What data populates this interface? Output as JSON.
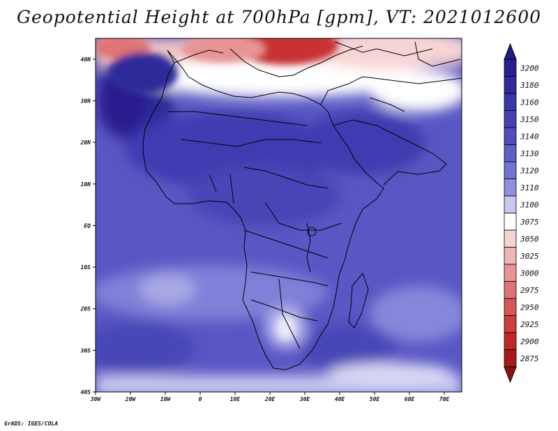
{
  "title": "Geopotential Height at 700hPa [gpm], VT: 2021012600",
  "footer": "GrADS: IGES/COLA",
  "map": {
    "lat_labels": [
      "40N",
      "30N",
      "20N",
      "10N",
      "EQ",
      "10S",
      "20S",
      "30S",
      "40S"
    ],
    "lon_labels": [
      "30W",
      "20W",
      "10W",
      "0",
      "10E",
      "20E",
      "30E",
      "40E",
      "50E",
      "60E",
      "70E"
    ],
    "lat_range": [
      -40,
      45
    ],
    "lon_range": [
      -30,
      75
    ]
  },
  "colorbar": {
    "levels": [
      {
        "label": "3200",
        "color": "#2b1f8f"
      },
      {
        "label": "3180",
        "color": "#2f2a9c"
      },
      {
        "label": "3160",
        "color": "#3936a8"
      },
      {
        "label": "3150",
        "color": "#4540b4"
      },
      {
        "label": "3140",
        "color": "#514dbd"
      },
      {
        "label": "3130",
        "color": "#5f5fc8"
      },
      {
        "label": "3120",
        "color": "#7373d2"
      },
      {
        "label": "3110",
        "color": "#9090de"
      },
      {
        "label": "3100",
        "color": "#c8c8f0"
      },
      {
        "label": "3075",
        "color": "#ffffff"
      },
      {
        "label": "3050",
        "color": "#f7d4d4"
      },
      {
        "label": "3025",
        "color": "#f0b4b4"
      },
      {
        "label": "3000",
        "color": "#e89494"
      },
      {
        "label": "2975",
        "color": "#e07474"
      },
      {
        "label": "2950",
        "color": "#d85656"
      },
      {
        "label": "2925",
        "color": "#cf3c3c"
      },
      {
        "label": "2900",
        "color": "#c02828"
      },
      {
        "label": "2875",
        "color": "#a61a1a"
      }
    ],
    "top_arrow_color": "#24198a",
    "bottom_arrow_color": "#8f1010"
  }
}
